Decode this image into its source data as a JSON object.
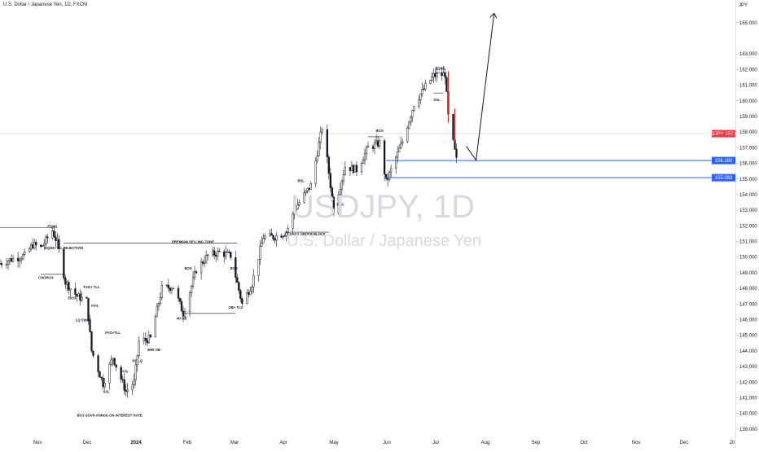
{
  "header": {
    "title": "U.S. Dollar / Japanese Yen, 1D, FXCM",
    "currency": "JPY"
  },
  "watermark": {
    "symbol": "USDJPY, 1D",
    "name": "U.S. Dollar / Japanese Yen"
  },
  "colors": {
    "up": "#26a69a",
    "down": "#ef5350",
    "candle": "#131722",
    "zone_line": "#2962ff",
    "price_tag": "#f23645",
    "zone_tag": "#2962ff"
  },
  "chart_data": {
    "type": "candlestick",
    "symbol": "USDJPY",
    "timeframe": "1D",
    "ylim": [
      138.6,
      166.1
    ],
    "y_ticks": [
      "139.000",
      "140.000",
      "141.000",
      "142.000",
      "143.000",
      "144.000",
      "145.000",
      "146.000",
      "147.000",
      "148.000",
      "149.000",
      "150.000",
      "151.000",
      "152.000",
      "153.000",
      "154.000",
      "155.000",
      "156.000",
      "157.000",
      "158.000",
      "159.000",
      "160.000",
      "161.000",
      "162.000",
      "163.000",
      "165.000"
    ],
    "x_ticks": [
      "Nov",
      "Dec",
      "2024",
      "Feb",
      "Mar",
      "Apr",
      "May",
      "Jun",
      "Jul",
      "Aug",
      "Sep",
      "Oct",
      "Nov",
      "Dec",
      "20"
    ],
    "x_range": [
      "2023-10-12",
      "2024-12-31"
    ],
    "series_close": [
      [
        "2023-10-12",
        149.6
      ],
      [
        "2023-10-20",
        149.9
      ],
      [
        "2023-10-27",
        150.1
      ],
      [
        "2023-11-01",
        150.8
      ],
      [
        "2023-11-06",
        150.6
      ],
      [
        "2023-11-13",
        151.7
      ],
      [
        "2023-11-16",
        150.9
      ],
      [
        "2023-11-21",
        148.4
      ],
      [
        "2023-11-28",
        147.5
      ],
      [
        "2023-12-04",
        147.2
      ],
      [
        "2023-12-07",
        144.0
      ],
      [
        "2023-12-14",
        141.9
      ],
      [
        "2023-12-20",
        143.6
      ],
      [
        "2023-12-28",
        141.4
      ],
      [
        "2024-01-02",
        142.0
      ],
      [
        "2024-01-05",
        144.6
      ],
      [
        "2024-01-12",
        144.8
      ],
      [
        "2024-01-19",
        148.0
      ],
      [
        "2024-01-26",
        148.1
      ],
      [
        "2024-02-01",
        146.4
      ],
      [
        "2024-02-09",
        149.2
      ],
      [
        "2024-02-16",
        150.1
      ],
      [
        "2024-02-23",
        150.3
      ],
      [
        "2024-03-01",
        150.1
      ],
      [
        "2024-03-08",
        147.0
      ],
      [
        "2024-03-14",
        148.3
      ],
      [
        "2024-03-21",
        151.3
      ],
      [
        "2024-03-28",
        151.3
      ],
      [
        "2024-04-04",
        151.6
      ],
      [
        "2024-04-10",
        153.2
      ],
      [
        "2024-04-19",
        154.6
      ],
      [
        "2024-04-26",
        158.3
      ],
      [
        "2024-04-29",
        156.2
      ],
      [
        "2024-05-03",
        153.0
      ],
      [
        "2024-05-10",
        155.8
      ],
      [
        "2024-05-17",
        155.6
      ],
      [
        "2024-05-24",
        157.0
      ],
      [
        "2024-05-31",
        157.3
      ],
      [
        "2024-06-04",
        154.8
      ],
      [
        "2024-06-14",
        157.4
      ],
      [
        "2024-06-21",
        159.8
      ],
      [
        "2024-06-28",
        160.9
      ],
      [
        "2024-07-03",
        161.6
      ],
      [
        "2024-07-10",
        161.7
      ],
      [
        "2024-07-12",
        159.0
      ],
      [
        "2024-07-17",
        156.2
      ]
    ],
    "current_price": {
      "label": "USDJPY",
      "value": "157.900",
      "y": 157.9
    },
    "horizontal_zones": [
      {
        "value": 156.18,
        "label": "156.180",
        "from": "2024-06-04"
      },
      {
        "value": 155.083,
        "label": "155.083",
        "from": "2024-06-03"
      }
    ],
    "projection": [
      [
        "2024-07-23",
        157.1
      ],
      [
        "2024-07-29",
        156.2
      ],
      [
        "2024-08-09",
        165.6
      ]
    ],
    "annotations": [
      {
        "text": "EQHS",
        "date": "2023-11-13",
        "y": 151.9
      },
      {
        "text": "EQHS+TLL REJECTION",
        "date": "2023-11-20",
        "y": 150.5
      },
      {
        "text": "PREMIUM SELLING ZONE",
        "date": "2024-02-07",
        "y": 150.9
      },
      {
        "text": "CHORCH",
        "date": "2023-11-09",
        "y": 148.6
      },
      {
        "text": "FVG+ TLL",
        "date": "2023-12-07",
        "y": 148.0
      },
      {
        "text": "BOS",
        "date": "2023-11-25",
        "y": 147.3
      },
      {
        "text": "FVG",
        "date": "2023-12-09",
        "y": 146.8
      },
      {
        "text": "LQ SWAP",
        "date": "2023-12-02",
        "y": 145.9
      },
      {
        "text": "FVG+TLL",
        "date": "2023-12-20",
        "y": 145.1
      },
      {
        "text": "4HR OB",
        "date": "2024-01-14",
        "y": 144.0
      },
      {
        "text": "NT LQ",
        "date": "2024-01-04",
        "y": 143.3
      },
      {
        "text": "FVG",
        "date": "2023-12-27",
        "y": 142.6
      },
      {
        "text": "SSL",
        "date": "2023-12-16",
        "y": 141.3
      },
      {
        "text": "BOJ GOVN ANNOU ON INTEREST RATE",
        "date": "2023-12-18",
        "y": 139.8
      },
      {
        "text": "4H OB",
        "date": "2024-01-31",
        "y": 146.0
      },
      {
        "text": "OB+ TLL",
        "date": "2024-03-04",
        "y": 146.7
      },
      {
        "text": "BOS",
        "date": "2024-02-04",
        "y": 149.2
      },
      {
        "text": "BOS",
        "date": "2024-03-03",
        "y": 149.2
      },
      {
        "text": "DAILY ORDER BLOCK",
        "date": "2024-04-17",
        "y": 151.4
      },
      {
        "text": "BSL",
        "date": "2024-04-13",
        "y": 154.8
      },
      {
        "text": "FVG",
        "date": "2024-05-07",
        "y": 153.3
      },
      {
        "text": "BOS",
        "date": "2024-05-31",
        "y": 158.0
      },
      {
        "text": "EQHS",
        "date": "2024-07-07",
        "y": 162.0
      },
      {
        "text": "SSL",
        "date": "2024-07-05",
        "y": 160.0
      }
    ]
  }
}
